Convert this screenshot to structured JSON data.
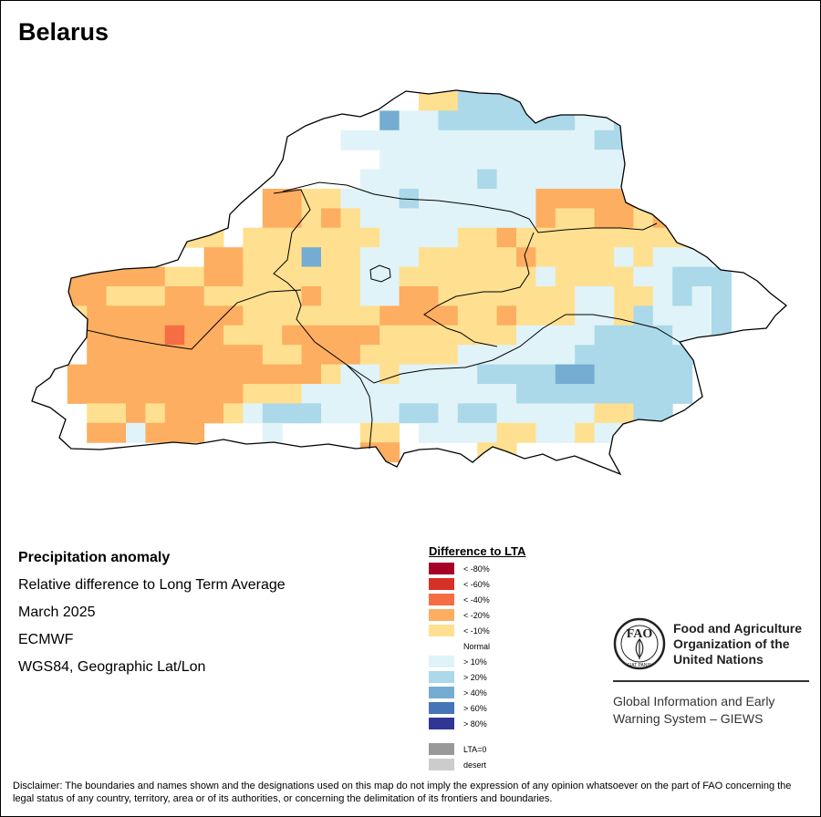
{
  "map": {
    "title": "Belarus"
  },
  "info": {
    "heading": "Precipitation anomaly",
    "subtitle": "Relative difference to Long Term Average",
    "period": "March 2025",
    "source": "ECMWF",
    "projection": "WGS84, Geographic Lat/Lon"
  },
  "legend": {
    "title": "Difference to LTA",
    "normal_label": "Normal",
    "items": [
      {
        "label": "< -80%",
        "color": "#a50026"
      },
      {
        "label": "< -60%",
        "color": "#d73027"
      },
      {
        "label": "< -40%",
        "color": "#f46d43"
      },
      {
        "label": "< -20%",
        "color": "#fdae61"
      },
      {
        "label": "< -10%",
        "color": "#fee090"
      },
      {
        "label": "> 10%",
        "color": "#e0f3f8"
      },
      {
        "label": "> 20%",
        "color": "#abd9e9"
      },
      {
        "label": "> 40%",
        "color": "#74add1"
      },
      {
        "label": "> 60%",
        "color": "#4575b4"
      },
      {
        "label": "> 80%",
        "color": "#313695"
      },
      {
        "label": "LTA=0",
        "color": "#999999"
      },
      {
        "label": "desert",
        "color": "#cccccc"
      }
    ]
  },
  "fao": {
    "logo_letters": "FAO",
    "logo_motto": "FIAT PANIS",
    "name_line1": "Food and Agriculture",
    "name_line2": "Organization of the",
    "name_line3": "United Nations",
    "giews_line1": "Global Information and Early",
    "giews_line2": "Warning System – GIEWS"
  },
  "disclaimer": "Disclaimer: The boundaries and names shown and the designations used on this map do not imply the expression of any opinion whatsoever on the part of FAO concerning the legal status of any country, territory, area or of its authorities, or concerning the delimitation of its frontiers and boundaries."
}
